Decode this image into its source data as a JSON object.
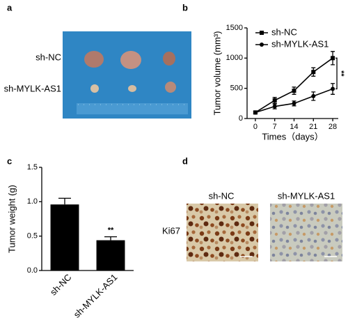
{
  "panel_labels": [
    "a",
    "b",
    "c",
    "d"
  ],
  "photo": {
    "row_labels": [
      "sh-NC",
      "sh-MYLK-AS1"
    ]
  },
  "chart_data": [
    {
      "type": "line",
      "x_label": "Times（days）",
      "y_label": "Tumor volume (mm³)",
      "x": [
        0,
        7,
        14,
        21,
        28
      ],
      "xlim": [
        -3,
        30
      ],
      "xticks": [
        0,
        7,
        14,
        21,
        28
      ],
      "ylim": [
        0,
        1500
      ],
      "yticks": [
        0,
        500,
        1000,
        1500
      ],
      "legend": "upper left",
      "annotation": "**",
      "series": [
        {
          "name": "sh-NC",
          "color": "#000000",
          "marker": "square",
          "values": [
            100,
            300,
            460,
            770,
            1000
          ],
          "errors": [
            20,
            50,
            60,
            70,
            110
          ]
        },
        {
          "name": "sh-MYLK-AS1",
          "color": "#000000",
          "marker": "circle",
          "values": [
            100,
            200,
            250,
            370,
            490
          ],
          "errors": [
            20,
            40,
            40,
            70,
            90
          ]
        }
      ]
    },
    {
      "type": "bar",
      "y_label": "Tumor weight (g)",
      "categories": [
        "sh-NC",
        "sh-MYLK-AS1"
      ],
      "values": [
        0.96,
        0.44
      ],
      "errors": [
        0.09,
        0.05
      ],
      "color": "#000000",
      "ylim": [
        0,
        1.5
      ],
      "yticks": [
        {
          "value": 0,
          "label": "0.0"
        },
        0.5,
        {
          "value": 1,
          "label": "1.0"
        },
        1.5
      ],
      "annotation": "**"
    }
  ],
  "ihc": {
    "columns": [
      "sh-NC",
      "sh-MYLK-AS1"
    ],
    "row_label": "Ki67"
  }
}
